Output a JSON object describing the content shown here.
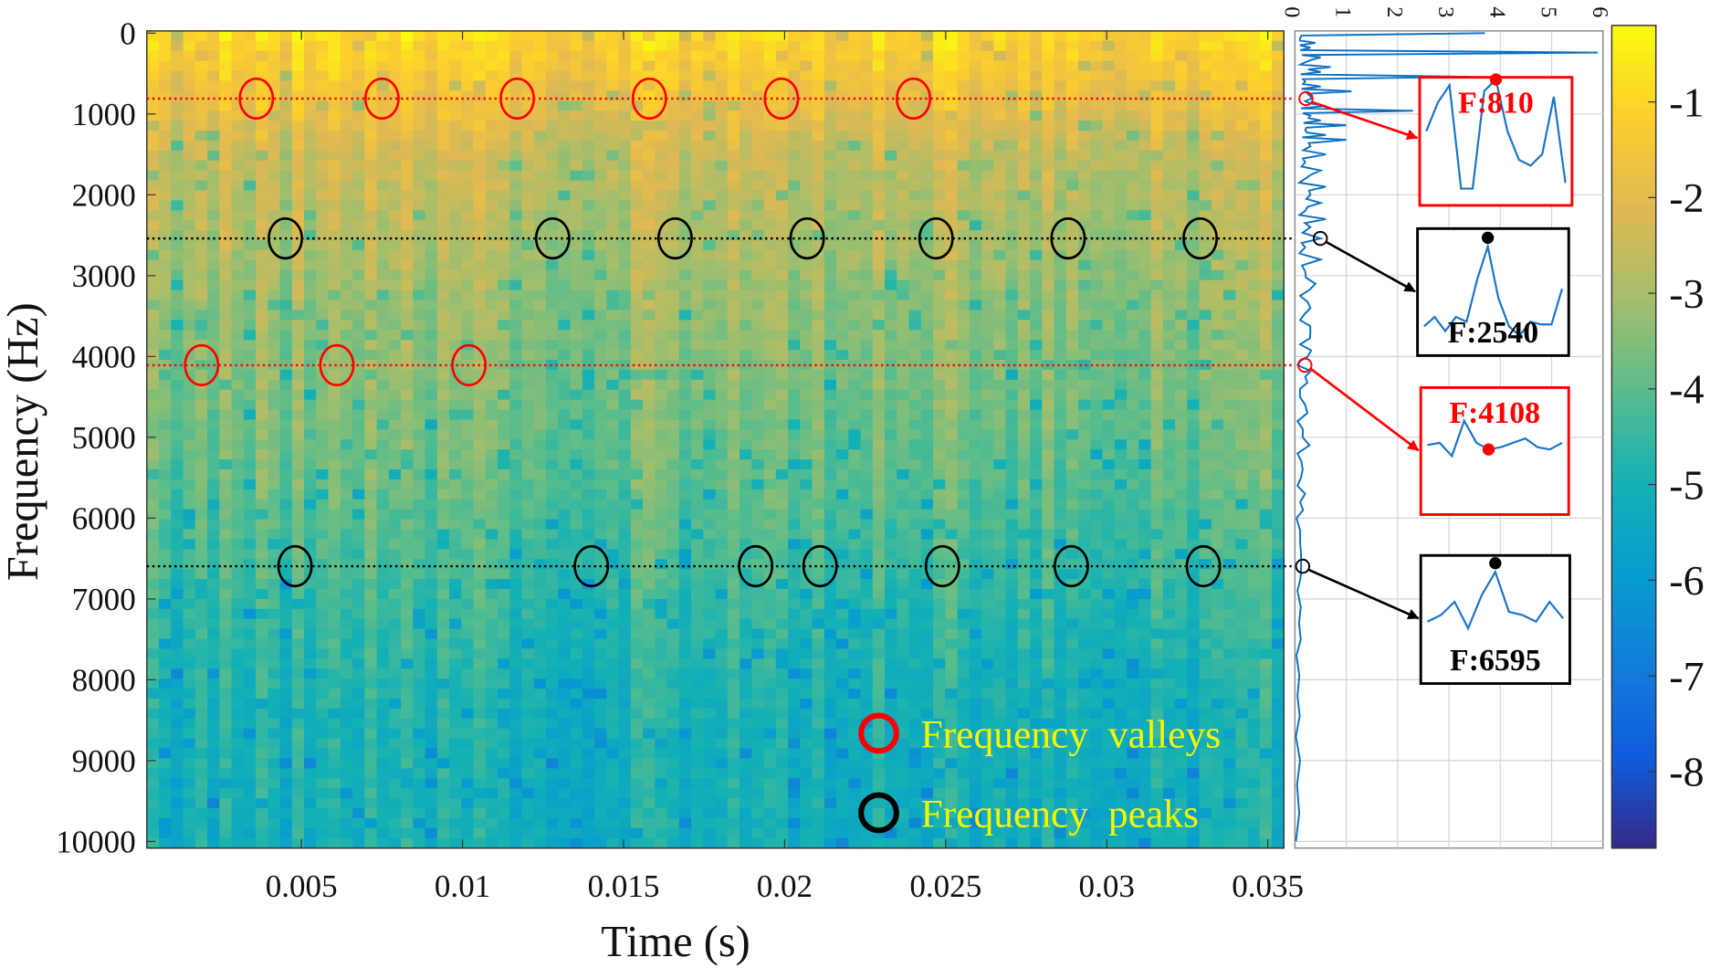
{
  "chart_data": {
    "type": "heatmap",
    "title": "",
    "xlabel": "Time (s)",
    "ylabel": "Frequency (Hz)",
    "xlim": [
      0.0002,
      0.0355
    ],
    "ylim": [
      0,
      10000
    ],
    "xticks": [
      0.005,
      0.01,
      0.015,
      0.02,
      0.025,
      0.03,
      0.035
    ],
    "xtick_labels": [
      "0.005",
      "0.01",
      "0.015",
      "0.02",
      "0.025",
      "0.03",
      "0.035"
    ],
    "yticks": [
      0,
      1000,
      2000,
      3000,
      4000,
      5000,
      6000,
      7000,
      8000,
      9000,
      10000
    ],
    "ytick_labels": [
      "0",
      "1000",
      "2000",
      "3000",
      "4000",
      "5000",
      "6000",
      "7000",
      "8000",
      "9000",
      "10000"
    ],
    "colormap": "parula",
    "colorbar": {
      "range": [
        -8.8,
        -0.2
      ],
      "ticks": [
        -1,
        -2,
        -3,
        -4,
        -5,
        -6,
        -7,
        -8
      ],
      "tick_labels": [
        "-1",
        "-2",
        "-3",
        "-4",
        "-5",
        "-6",
        "-7",
        "-8"
      ]
    },
    "row_profile": [
      [
        0,
        -0.9
      ],
      [
        500,
        -1.4
      ],
      [
        1000,
        -1.9
      ],
      [
        1500,
        -2.5
      ],
      [
        2500,
        -2.9
      ],
      [
        3500,
        -3.3
      ],
      [
        4500,
        -3.6
      ],
      [
        5500,
        -3.9
      ],
      [
        6500,
        -4.3
      ],
      [
        7500,
        -4.7
      ],
      [
        8500,
        -5.0
      ],
      [
        10000,
        -5.1
      ]
    ],
    "valleys": [
      {
        "freq": 810,
        "times": [
          0.0036,
          0.0075,
          0.0117,
          0.0158,
          0.0199,
          0.024
        ]
      },
      {
        "freq": 4108,
        "times": [
          0.0019,
          0.0061,
          0.0102
        ]
      }
    ],
    "peaks": [
      {
        "freq": 2540,
        "times": [
          0.0045,
          0.0128,
          0.0166,
          0.0207,
          0.0247,
          0.0288,
          0.0329
        ]
      },
      {
        "freq": 6595,
        "times": [
          0.0048,
          0.014,
          0.0191,
          0.0211,
          0.0249,
          0.0289,
          0.033
        ]
      }
    ],
    "legend": {
      "position": "bottom-right",
      "entries": [
        {
          "label": "Frequency  valleys",
          "color": "#ff0000"
        },
        {
          "label": "Frequency  peaks",
          "color": "#000000"
        }
      ]
    },
    "side_panel": {
      "type": "line",
      "xlim": [
        0,
        6
      ],
      "xticks": [
        0,
        1,
        2,
        3,
        4,
        5,
        6
      ],
      "xtick_labels": [
        "0",
        "1",
        "2",
        "3",
        "4",
        "5",
        "6"
      ],
      "color": "#0a6fc2",
      "profile": [
        [
          0,
          3.7
        ],
        [
          60,
          0.1
        ],
        [
          120,
          0.4
        ],
        [
          180,
          0.3
        ],
        [
          240,
          5.9
        ],
        [
          300,
          0.5
        ],
        [
          360,
          0.2
        ],
        [
          420,
          0.7
        ],
        [
          480,
          0.5
        ],
        [
          540,
          3.4
        ],
        [
          600,
          0.2
        ],
        [
          660,
          0.5
        ],
        [
          720,
          1.1
        ],
        [
          780,
          0.3
        ],
        [
          840,
          0.2
        ],
        [
          900,
          0.6
        ],
        [
          960,
          2.3
        ],
        [
          1020,
          0.3
        ],
        [
          1080,
          0.5
        ],
        [
          1140,
          1.0
        ],
        [
          1200,
          0.2
        ],
        [
          1260,
          0.6
        ],
        [
          1320,
          1.0
        ],
        [
          1400,
          0.3
        ],
        [
          1500,
          0.6
        ],
        [
          1600,
          0.2
        ],
        [
          1700,
          0.5
        ],
        [
          1800,
          0.2
        ],
        [
          1900,
          0.6
        ],
        [
          2000,
          0.3
        ],
        [
          2100,
          0.5
        ],
        [
          2200,
          0.2
        ],
        [
          2300,
          0.6
        ],
        [
          2400,
          0.3
        ],
        [
          2540,
          0.5
        ],
        [
          2650,
          0.2
        ],
        [
          2800,
          0.5
        ],
        [
          2950,
          0.2
        ],
        [
          3100,
          0.4
        ],
        [
          3250,
          0.1
        ],
        [
          3400,
          0.3
        ],
        [
          3550,
          0.1
        ],
        [
          3700,
          0.3
        ],
        [
          3850,
          0.1
        ],
        [
          4000,
          0.25
        ],
        [
          4108,
          0.05
        ],
        [
          4250,
          0.2
        ],
        [
          4400,
          0.1
        ],
        [
          4600,
          0.2
        ],
        [
          4800,
          0.05
        ],
        [
          5000,
          0.15
        ],
        [
          5200,
          0.05
        ],
        [
          5400,
          0.15
        ],
        [
          5600,
          0.05
        ],
        [
          5800,
          0.1
        ],
        [
          6000,
          0.03
        ],
        [
          6300,
          0.1
        ],
        [
          6595,
          0.12
        ],
        [
          6900,
          0.05
        ],
        [
          7300,
          0.08
        ],
        [
          7700,
          0.03
        ],
        [
          8200,
          0.05
        ],
        [
          8700,
          0.02
        ],
        [
          9300,
          0.04
        ],
        [
          10000,
          0.02
        ]
      ]
    },
    "insets": [
      {
        "label": "F:810",
        "kind": "valley",
        "color": "#ff0000",
        "curve": [
          0.55,
          0.8,
          0.95,
          0.05,
          0.05,
          0.9,
          1.0,
          0.55,
          0.3,
          0.25,
          0.35,
          0.85,
          0.1
        ],
        "marker_index": 6
      },
      {
        "label": "F:2540",
        "kind": "peak",
        "color": "#000000",
        "curve": [
          0.1,
          0.2,
          0.05,
          0.2,
          0.15,
          0.6,
          0.95,
          0.4,
          0.1,
          0.0,
          0.15,
          0.12,
          0.12,
          0.5
        ],
        "marker_index": 6
      },
      {
        "label": "F:4108",
        "kind": "valley",
        "color": "#ff0000",
        "curve": [
          0.4,
          0.45,
          0.15,
          0.95,
          0.45,
          0.3,
          0.35,
          0.45,
          0.55,
          0.35,
          0.3,
          0.45
        ],
        "marker_index": 5
      },
      {
        "label": "F:6595",
        "kind": "peak",
        "color": "#000000",
        "curve": [
          0.2,
          0.3,
          0.5,
          0.1,
          0.6,
          0.95,
          0.35,
          0.3,
          0.2,
          0.5,
          0.25
        ],
        "marker_index": 5
      }
    ]
  }
}
